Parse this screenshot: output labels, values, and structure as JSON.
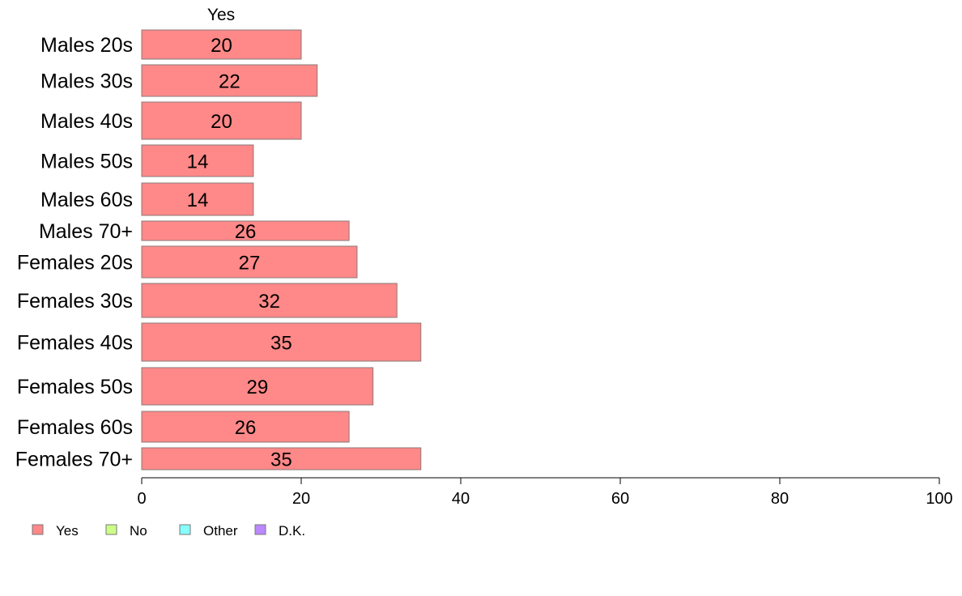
{
  "chart_data": {
    "type": "bar",
    "orientation": "horizontal",
    "column_header": "Yes",
    "categories": [
      "Males 20s",
      "Males 30s",
      "Males 40s",
      "Males 50s",
      "Males 60s",
      "Males 70+",
      "Females 20s",
      "Females 30s",
      "Females 40s",
      "Females 50s",
      "Females 60s",
      "Females 70+"
    ],
    "series": [
      {
        "name": "Yes",
        "color": "#ff8888",
        "values": [
          20,
          22,
          20,
          14,
          14,
          26,
          27,
          32,
          35,
          29,
          26,
          35
        ]
      }
    ],
    "xlim": [
      0,
      100
    ],
    "xticks": [
      0,
      20,
      40,
      60,
      80,
      100
    ],
    "grid": false,
    "legend": {
      "position": "bottom-left",
      "entries": [
        {
          "label": "Yes",
          "color": "#ff8888"
        },
        {
          "label": "No",
          "color": "#ccff88"
        },
        {
          "label": "Other",
          "color": "#88ffff"
        },
        {
          "label": "D.K.",
          "color": "#bb88ff"
        }
      ]
    }
  }
}
